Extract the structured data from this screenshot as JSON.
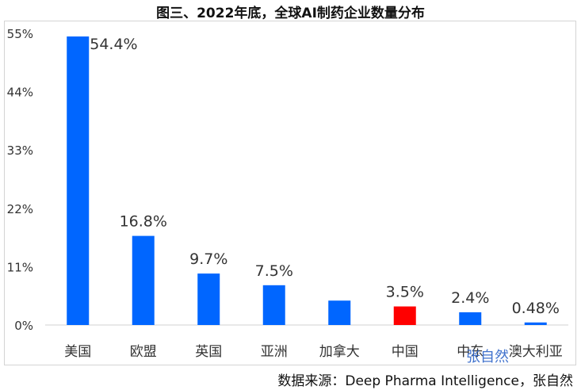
{
  "title": "图三、2022年底，全球AI制药企业数量分布",
  "source": "数据来源：Deep Pharma Intelligence，张自然",
  "watermark": "张自然",
  "colors": {
    "bar": "#0066ff",
    "highlight": "#ff0000",
    "axis": "#d0d0d0",
    "text": "#333333"
  },
  "chart_data": {
    "type": "bar",
    "title": "图三、2022年底，全球AI制药企业数量分布",
    "categories": [
      "美国",
      "欧盟",
      "英国",
      "亚洲",
      "加拿大",
      "中国",
      "中东",
      "澳大利亚"
    ],
    "values": [
      54.4,
      16.8,
      9.7,
      7.5,
      4.6,
      3.5,
      2.4,
      0.48
    ],
    "data_labels": [
      "54.4%",
      "16.8%",
      "9.7%",
      "7.5%",
      "",
      "3.5%",
      "2.4%",
      "0.48%"
    ],
    "highlight_index": 5,
    "yticks": [
      "0%",
      "11%",
      "22%",
      "33%",
      "44%",
      "55%"
    ],
    "ylim": [
      0,
      55
    ],
    "grid": false,
    "legend": "none"
  }
}
